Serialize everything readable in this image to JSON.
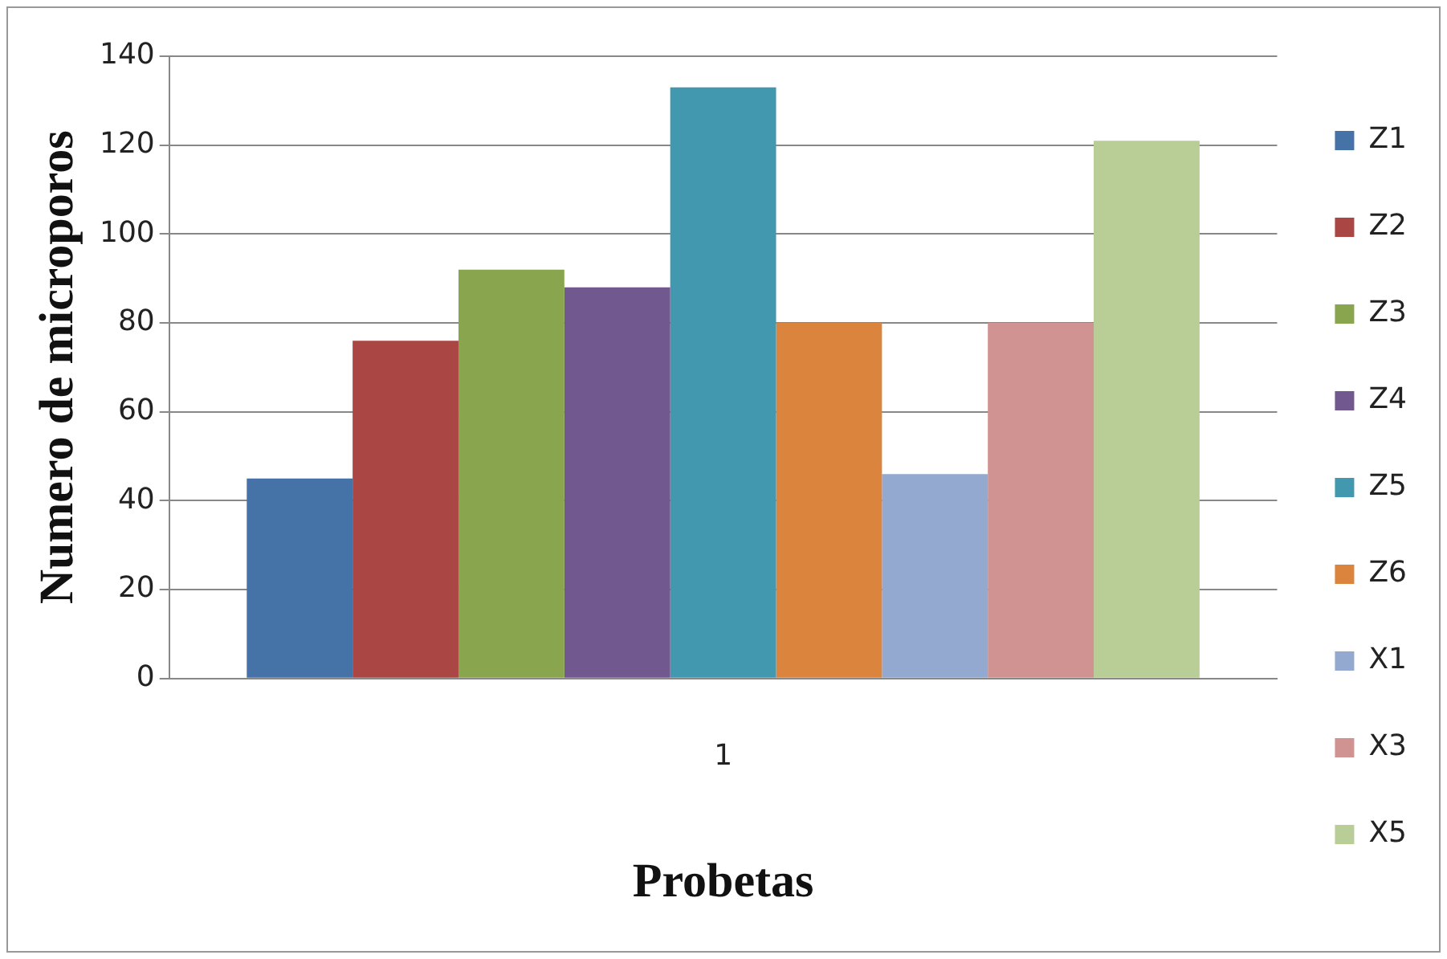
{
  "chart_data": {
    "type": "bar",
    "xlabel": "Probetas",
    "ylabel": "Numero de microporos",
    "categories": [
      "1"
    ],
    "series": [
      {
        "name": "Z1",
        "color": "#4572a7",
        "values": [
          45
        ]
      },
      {
        "name": "Z2",
        "color": "#aa4643",
        "values": [
          76
        ]
      },
      {
        "name": "Z3",
        "color": "#89a54e",
        "values": [
          92
        ]
      },
      {
        "name": "Z4",
        "color": "#71588f",
        "values": [
          88
        ]
      },
      {
        "name": "Z5",
        "color": "#4198af",
        "values": [
          133
        ]
      },
      {
        "name": "Z6",
        "color": "#db843d",
        "values": [
          80
        ]
      },
      {
        "name": "X1",
        "color": "#93a9cf",
        "values": [
          46
        ]
      },
      {
        "name": "X3",
        "color": "#d19392",
        "values": [
          80
        ]
      },
      {
        "name": "X5",
        "color": "#b9cd96",
        "values": [
          121
        ]
      }
    ],
    "ylim": [
      0,
      140
    ],
    "yticks": [
      0,
      20,
      40,
      60,
      80,
      100,
      120,
      140
    ],
    "grid": "y",
    "legend": "right"
  }
}
